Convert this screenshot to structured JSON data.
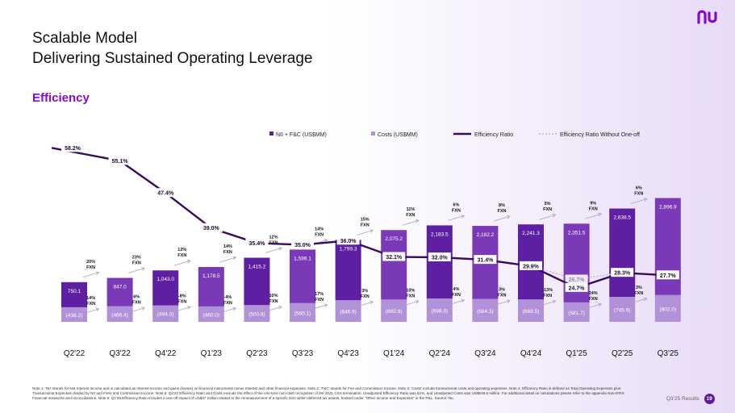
{
  "header": {
    "title_line1": "Scalable Model",
    "title_line2": "Delivering Sustained Operating Leverage",
    "section": "Efficiency"
  },
  "logo": {
    "icon": "nu-logo-icon",
    "text": "nu"
  },
  "colors": {
    "nii_bar": "#5e1fa3",
    "nii_bar_light": "#7a3ab8",
    "costs_bar": "#b192d8",
    "line": "#3a0a5e",
    "label_box": "#ffffff",
    "accent": "#820ad1"
  },
  "chart_data": {
    "type": "bar",
    "categories": [
      "Q2'22",
      "Q3'22",
      "Q4'22",
      "Q1'23",
      "Q2'23",
      "Q3'23",
      "Q4'23",
      "Q1'24",
      "Q2'24",
      "Q3'24",
      "Q4'24",
      "Q1'25",
      "Q2'25",
      "Q3'25"
    ],
    "series": [
      {
        "name": "NII + F&C (US$MM)",
        "type": "bar",
        "values": [
          750.1,
          847.0,
          1043.0,
          1178.5,
          1415.2,
          1599.1,
          1799.3,
          2075.2,
          2183.5,
          2182.2,
          2241.3,
          2351.5,
          2638.5,
          2896.9
        ],
        "labels": [
          "750.1",
          "847.0",
          "1,043.0",
          "1,178.5",
          "1,415.2",
          "1,599.1",
          "1,799.3",
          "2,075.2",
          "2,183.5",
          "2,182.2",
          "2,241.3",
          "2,351.5",
          "2,638.5",
          "2,896.9"
        ]
      },
      {
        "name": "Costs (US$MM)",
        "type": "bar",
        "values": [
          -436.2,
          -466.4,
          -494.0,
          -460.0,
          -500.8,
          -560.1,
          -646.9,
          -665.9,
          -698.3,
          -684.3,
          -669.5,
          -581.7,
          -745.9,
          -802.0
        ],
        "labels": [
          "(436.2)",
          "(466.4)",
          "(494.0)",
          "(460.0)",
          "(500.8)",
          "(560.1)",
          "(646.9)",
          "(665.9)",
          "(698.3)",
          "(684.3)",
          "(669.5)",
          "(581.7)",
          "(745.9)",
          "(802.0)"
        ]
      },
      {
        "name": "Efficiency Ratio",
        "type": "line",
        "values": [
          58.2,
          55.1,
          47.4,
          39.0,
          35.4,
          35.0,
          36.0,
          32.1,
          32.0,
          31.4,
          29.9,
          24.7,
          28.3,
          27.7
        ],
        "labels": [
          "58.2%",
          "55.1%",
          "47.4%",
          "39.0%",
          "35.4%",
          "35.0%",
          "36.0%",
          "32.1%",
          "32.0%",
          "31.4%",
          "29.9%",
          "24.7%",
          "28.3%",
          "27.7%"
        ]
      },
      {
        "name": "Efficiency Ratio Without One-off",
        "type": "line-dotted",
        "points": [
          {
            "x": "Q4'24",
            "value": 29.9
          },
          {
            "x": "Q1'25",
            "value": 26.7,
            "label": "26.7%"
          },
          {
            "x": "Q2'25",
            "value": 28.3
          }
        ]
      }
    ],
    "growth_top": [
      {
        "x": "Q3'22",
        "pct": "20%",
        "fxn": "FXN"
      },
      {
        "x": "Q4'22",
        "pct": "23%",
        "fxn": "FXN"
      },
      {
        "x": "Q1'23",
        "pct": "12%",
        "fxn": "FXN"
      },
      {
        "x": "Q2'23",
        "pct": "14%",
        "fxn": "FXN"
      },
      {
        "x": "Q3'23",
        "pct": "12%",
        "fxn": "FXN"
      },
      {
        "x": "Q4'23",
        "pct": "14%",
        "fxn": "FXN"
      },
      {
        "x": "Q1'24",
        "pct": "15%",
        "fxn": "FXN"
      },
      {
        "x": "Q2'24",
        "pct": "11%",
        "fxn": "FXN"
      },
      {
        "x": "Q3'24",
        "pct": "6%",
        "fxn": "FXN"
      },
      {
        "x": "Q4'24",
        "pct": "8%",
        "fxn": "FXN"
      },
      {
        "x": "Q1'25",
        "pct": "5%",
        "fxn": "FXN"
      },
      {
        "x": "Q2'25",
        "pct": "9%",
        "fxn": "FXN"
      },
      {
        "x": "Q3'25",
        "pct": "6%",
        "fxn": "FXN"
      }
    ],
    "growth_bottom": [
      {
        "x": "Q3'22",
        "pct": "14%",
        "fxn": "FXN"
      },
      {
        "x": "Q4'22",
        "pct": "6%",
        "fxn": "FXN"
      },
      {
        "x": "Q1'23",
        "pct": "-8%",
        "fxn": "FXN"
      },
      {
        "x": "Q2'23",
        "pct": "-4%",
        "fxn": "FXN"
      },
      {
        "x": "Q3'23",
        "pct": "10%",
        "fxn": "FXN"
      },
      {
        "x": "Q4'23",
        "pct": "17%",
        "fxn": "FXN"
      },
      {
        "x": "Q1'24",
        "pct": "3%",
        "fxn": "FXN"
      },
      {
        "x": "Q2'24",
        "pct": "10%",
        "fxn": "FXN"
      },
      {
        "x": "Q3'24",
        "pct": "4%",
        "fxn": "FXN"
      },
      {
        "x": "Q4'24",
        "pct": "3%",
        "fxn": "FXN"
      },
      {
        "x": "Q1'25",
        "pct": "-13%",
        "fxn": "FXN"
      },
      {
        "x": "Q2'25",
        "pct": "24%",
        "fxn": "FXN"
      },
      {
        "x": "Q3'25",
        "pct": "3%",
        "fxn": "FXN"
      }
    ],
    "legend_position": "top-right",
    "grid": false
  },
  "notes": "Note 1: 'NII' stands for Net Interest Income and is calculated as Interest income and gains (losses) on financial instruments minus Interest and other financial expenses. Note 2: 'F&C' stands for Fee and Commission Income. Note 3: 'Costs' include transactional costs and operating expenses. Note 4: Efficiency Ratio is defined as Total Operating Expenses plus Transactional Expenses divided by NII and Fees and Commission Income. Note 5: Q4'22 Efficiency Ratio and Costs exclude the effect of the one-time non-cash recognition of the 2021 CSA termination. Unadjusted Efficiency Ratio was 81%, and Unadjusted Costs was US$649.6 million. For additional detail on calculations please refer to the appendix Non-IFRS Financial measures and reconciliations. Note 6: Q1'25 Efficiency Ratio includes a one-off impact of US$47 million related to the remeasurement of a specific item within deferred tax assets, booked under \"Other Income and Expenses\" in the P&L. Source: Nu.",
  "footer": {
    "label": "Q3'25 Results",
    "page": "19"
  }
}
